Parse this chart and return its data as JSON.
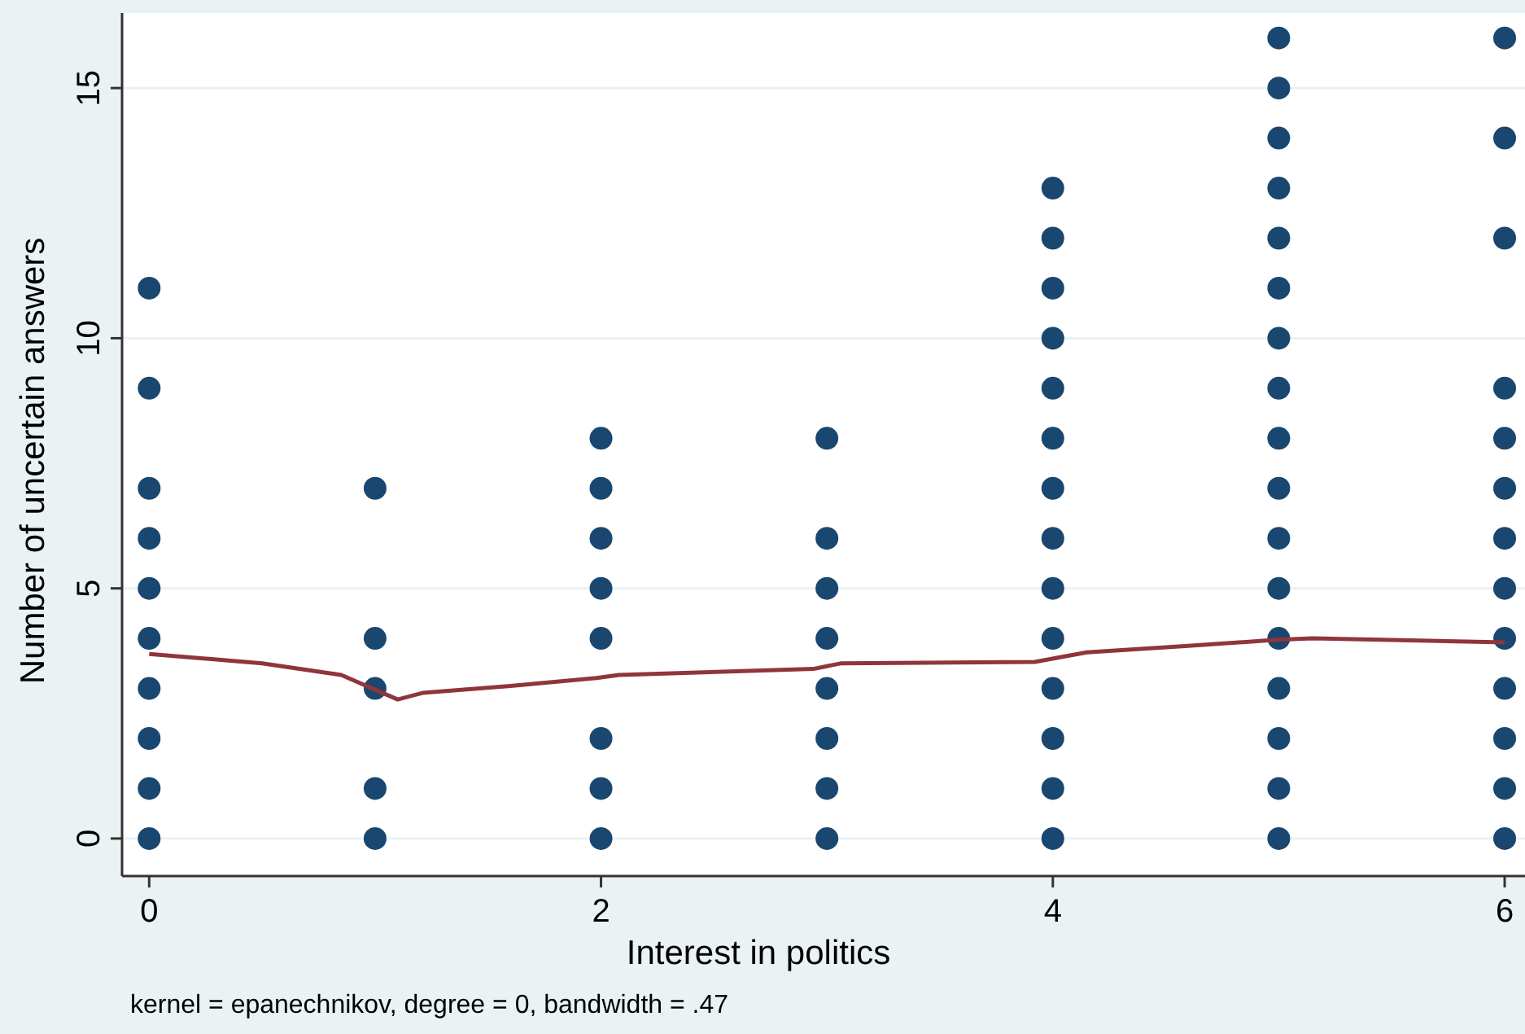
{
  "chart_data": {
    "type": "scatter",
    "xlabel": "Interest in politics",
    "ylabel": "Number of uncertain answers",
    "annotations": [
      "kernel = epanechnikov, degree = 0, bandwidth = .47"
    ],
    "xlim": [
      -0.12,
      6.09
    ],
    "ylim": [
      -0.75,
      16.5
    ],
    "xticks": [
      0,
      2,
      4,
      6
    ],
    "yticks": [
      0,
      5,
      10,
      15
    ],
    "grid": "y",
    "marker": "circle",
    "series": [
      {
        "color": "#1a476f",
        "x": [
          0,
          0,
          0,
          0,
          0,
          0,
          0,
          0,
          0,
          0,
          1,
          1,
          1,
          1,
          1,
          2,
          2,
          2,
          2,
          2,
          2,
          2,
          2,
          3,
          3,
          3,
          3,
          3,
          3,
          3,
          3,
          4,
          4,
          4,
          4,
          4,
          4,
          4,
          4,
          4,
          4,
          4,
          4,
          4,
          4,
          5,
          5,
          5,
          5,
          5,
          5,
          5,
          5,
          5,
          5,
          5,
          5,
          5,
          5,
          5,
          5,
          5,
          6,
          6,
          6,
          6,
          6,
          6,
          6,
          6,
          6,
          6,
          6,
          6,
          6
        ],
        "values": [
          0,
          1,
          2,
          3,
          4,
          5,
          6,
          7,
          9,
          11,
          0,
          1,
          3,
          4,
          7,
          0,
          1,
          2,
          4,
          5,
          6,
          7,
          8,
          0,
          1,
          2,
          3,
          4,
          5,
          6,
          8,
          0,
          1,
          2,
          3,
          4,
          5,
          6,
          7,
          8,
          9,
          10,
          11,
          12,
          13,
          0,
          1,
          2,
          3,
          4,
          5,
          6,
          7,
          8,
          9,
          10,
          11,
          12,
          13,
          14,
          15,
          16,
          0,
          1,
          2,
          3,
          4,
          5,
          6,
          7,
          8,
          9,
          12,
          14,
          16
        ]
      },
      {
        "type": "line",
        "color": "#90353b",
        "line_style": "solid",
        "marker": "none",
        "x": [
          0,
          0.5,
          0.85,
          1.1,
          1.21,
          1.6,
          1.98,
          2.08,
          2.94,
          3.06,
          3.92,
          4.15,
          4.6,
          4.98,
          5.15,
          6
        ],
        "values": [
          3.69,
          3.5,
          3.27,
          2.78,
          2.91,
          3.05,
          3.21,
          3.27,
          3.39,
          3.5,
          3.53,
          3.72,
          3.85,
          3.97,
          4.0,
          3.92
        ]
      }
    ]
  }
}
